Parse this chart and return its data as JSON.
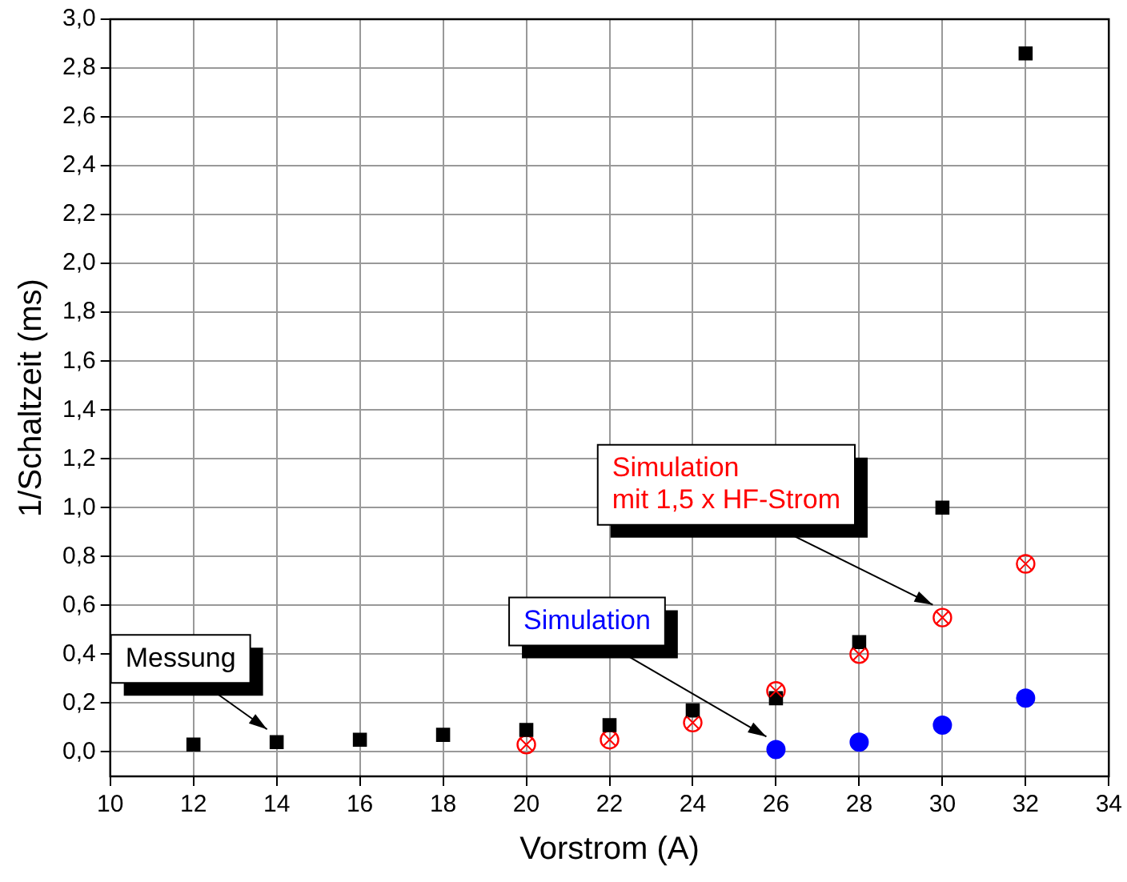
{
  "chart_data": {
    "type": "scatter",
    "xlabel": "Vorstrom (A)",
    "ylabel": "1/Schaltzeit (ms)",
    "xlim": [
      10,
      34
    ],
    "xticks": [
      10,
      12,
      14,
      16,
      18,
      20,
      22,
      24,
      26,
      28,
      30,
      32,
      34
    ],
    "ylim": [
      -0.1,
      3.0
    ],
    "yticks": [
      {
        "value": 0,
        "label": "0,0"
      },
      {
        "value": 0.2,
        "label": "0,2"
      },
      {
        "value": 0.4,
        "label": "0,4"
      },
      {
        "value": 0.6,
        "label": "0,6"
      },
      {
        "value": 0.8,
        "label": "0,8"
      },
      {
        "value": 1.0,
        "label": "1,0"
      },
      {
        "value": 1.2,
        "label": "1,2"
      },
      {
        "value": 1.4,
        "label": "1,4"
      },
      {
        "value": 1.6,
        "label": "1,6"
      },
      {
        "value": 1.8,
        "label": "1,8"
      },
      {
        "value": 2.0,
        "label": "2,0"
      },
      {
        "value": 2.2,
        "label": "2,2"
      },
      {
        "value": 2.4,
        "label": "2,4"
      },
      {
        "value": 2.6,
        "label": "2,6"
      },
      {
        "value": 2.8,
        "label": "2,8"
      },
      {
        "value": 3.0,
        "label": "3,0"
      }
    ],
    "grid": true,
    "legend": false,
    "series": [
      {
        "name": "Messung",
        "color": "#000000",
        "marker": "square",
        "x": [
          12,
          14,
          16,
          18,
          20,
          22,
          24,
          26,
          28,
          30,
          32
        ],
        "values": [
          0.03,
          0.04,
          0.05,
          0.07,
          0.09,
          0.11,
          0.17,
          0.22,
          0.45,
          1.0,
          2.86
        ]
      },
      {
        "name": "Simulation\nmit 1,5 x HF-Strom",
        "color": "#ff0000",
        "marker": "circle",
        "x": [
          20,
          22,
          24,
          26,
          28,
          30,
          32
        ],
        "values": [
          0.03,
          0.05,
          0.12,
          0.25,
          0.4,
          0.55,
          0.77
        ]
      },
      {
        "name": "Simulation",
        "color": "#0000ff",
        "marker": "circle",
        "x": [
          26,
          28,
          30,
          32
        ],
        "values": [
          0.01,
          0.04,
          0.11,
          0.22
        ]
      }
    ]
  }
}
